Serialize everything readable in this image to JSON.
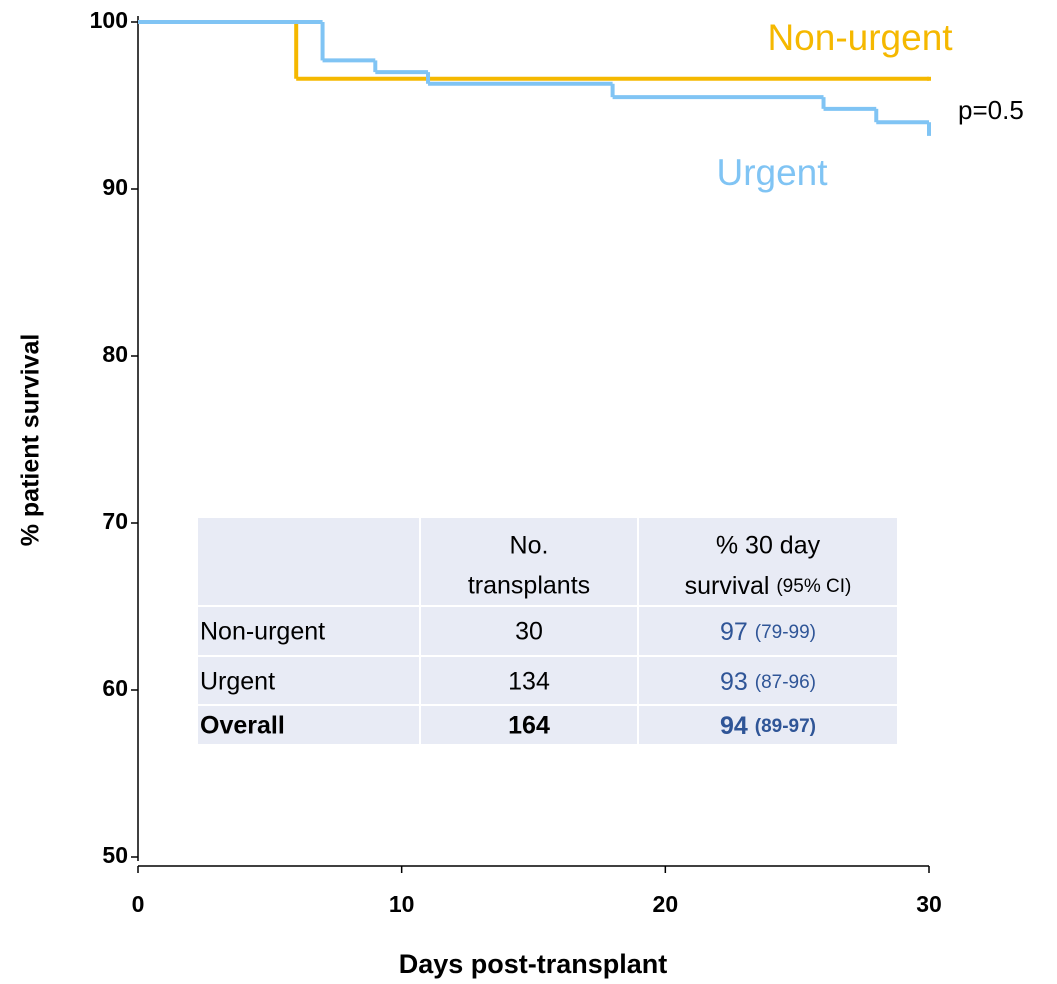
{
  "chart_data": {
    "type": "line",
    "step": "post",
    "xlabel": "Days post-transplant",
    "ylabel": "% patient survival",
    "xlim": [
      0,
      30
    ],
    "xticks": [
      0,
      10,
      20,
      30
    ],
    "ylim": [
      50,
      100
    ],
    "yticks": [
      50,
      60,
      70,
      80,
      90,
      100
    ],
    "series": [
      {
        "name": "Non-urgent",
        "color": "#f5b800",
        "x": [
          0,
          6,
          30
        ],
        "values": [
          100,
          96.6,
          96.6
        ]
      },
      {
        "name": "Urgent",
        "color": "#80c4f4",
        "x": [
          0,
          7,
          9,
          11,
          18,
          26,
          28,
          30
        ],
        "values": [
          100,
          97.7,
          97.0,
          96.3,
          95.5,
          94.8,
          94.0,
          93.3
        ]
      }
    ],
    "annotations": [
      "p=0.5"
    ],
    "table": {
      "columns": [
        [
          "No.",
          "transplants"
        ],
        [
          "% 30 day",
          "survival"
        ]
      ],
      "ci_label": "(95% CI)",
      "rows": [
        [
          "Non-urgent",
          30,
          97,
          "(79-99)"
        ],
        [
          "Urgent",
          134,
          93,
          "(87-96)"
        ],
        [
          "Overall",
          164,
          94,
          "(89-97)"
        ]
      ]
    }
  }
}
